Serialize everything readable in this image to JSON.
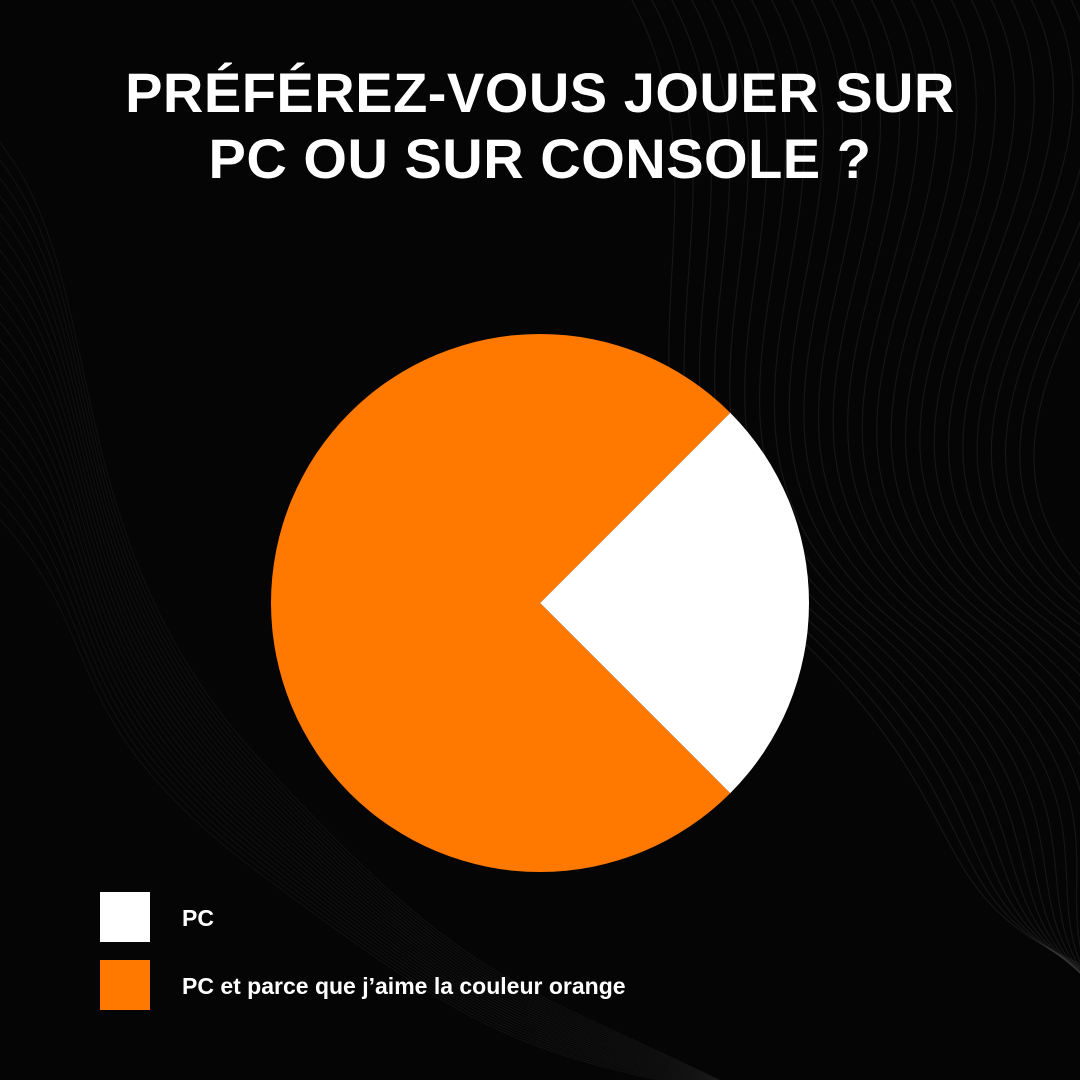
{
  "title": {
    "line1": "PRÉFÉREZ-VOUS JOUER SUR",
    "line2": "PC OU SUR CONSOLE ?"
  },
  "colors": {
    "background": "#050505",
    "pc": "#ffffff",
    "orange": "#ff7900",
    "text": "#ffffff"
  },
  "chart_data": {
    "type": "pie",
    "title": "PRÉFÉREZ-VOUS JOUER SUR PC OU SUR CONSOLE ?",
    "start_angle_deg": -45,
    "slices": [
      {
        "label": "PC",
        "value": 25,
        "color": "#ffffff"
      },
      {
        "label": "PC et parce que j’aime la couleur orange",
        "value": 75,
        "color": "#ff7900"
      }
    ],
    "legend_position": "bottom-left"
  },
  "legend": {
    "items": [
      {
        "label": "PC",
        "color": "#ffffff"
      },
      {
        "label": "PC et parce que j’aime la couleur orange",
        "color": "#ff7900"
      }
    ]
  }
}
